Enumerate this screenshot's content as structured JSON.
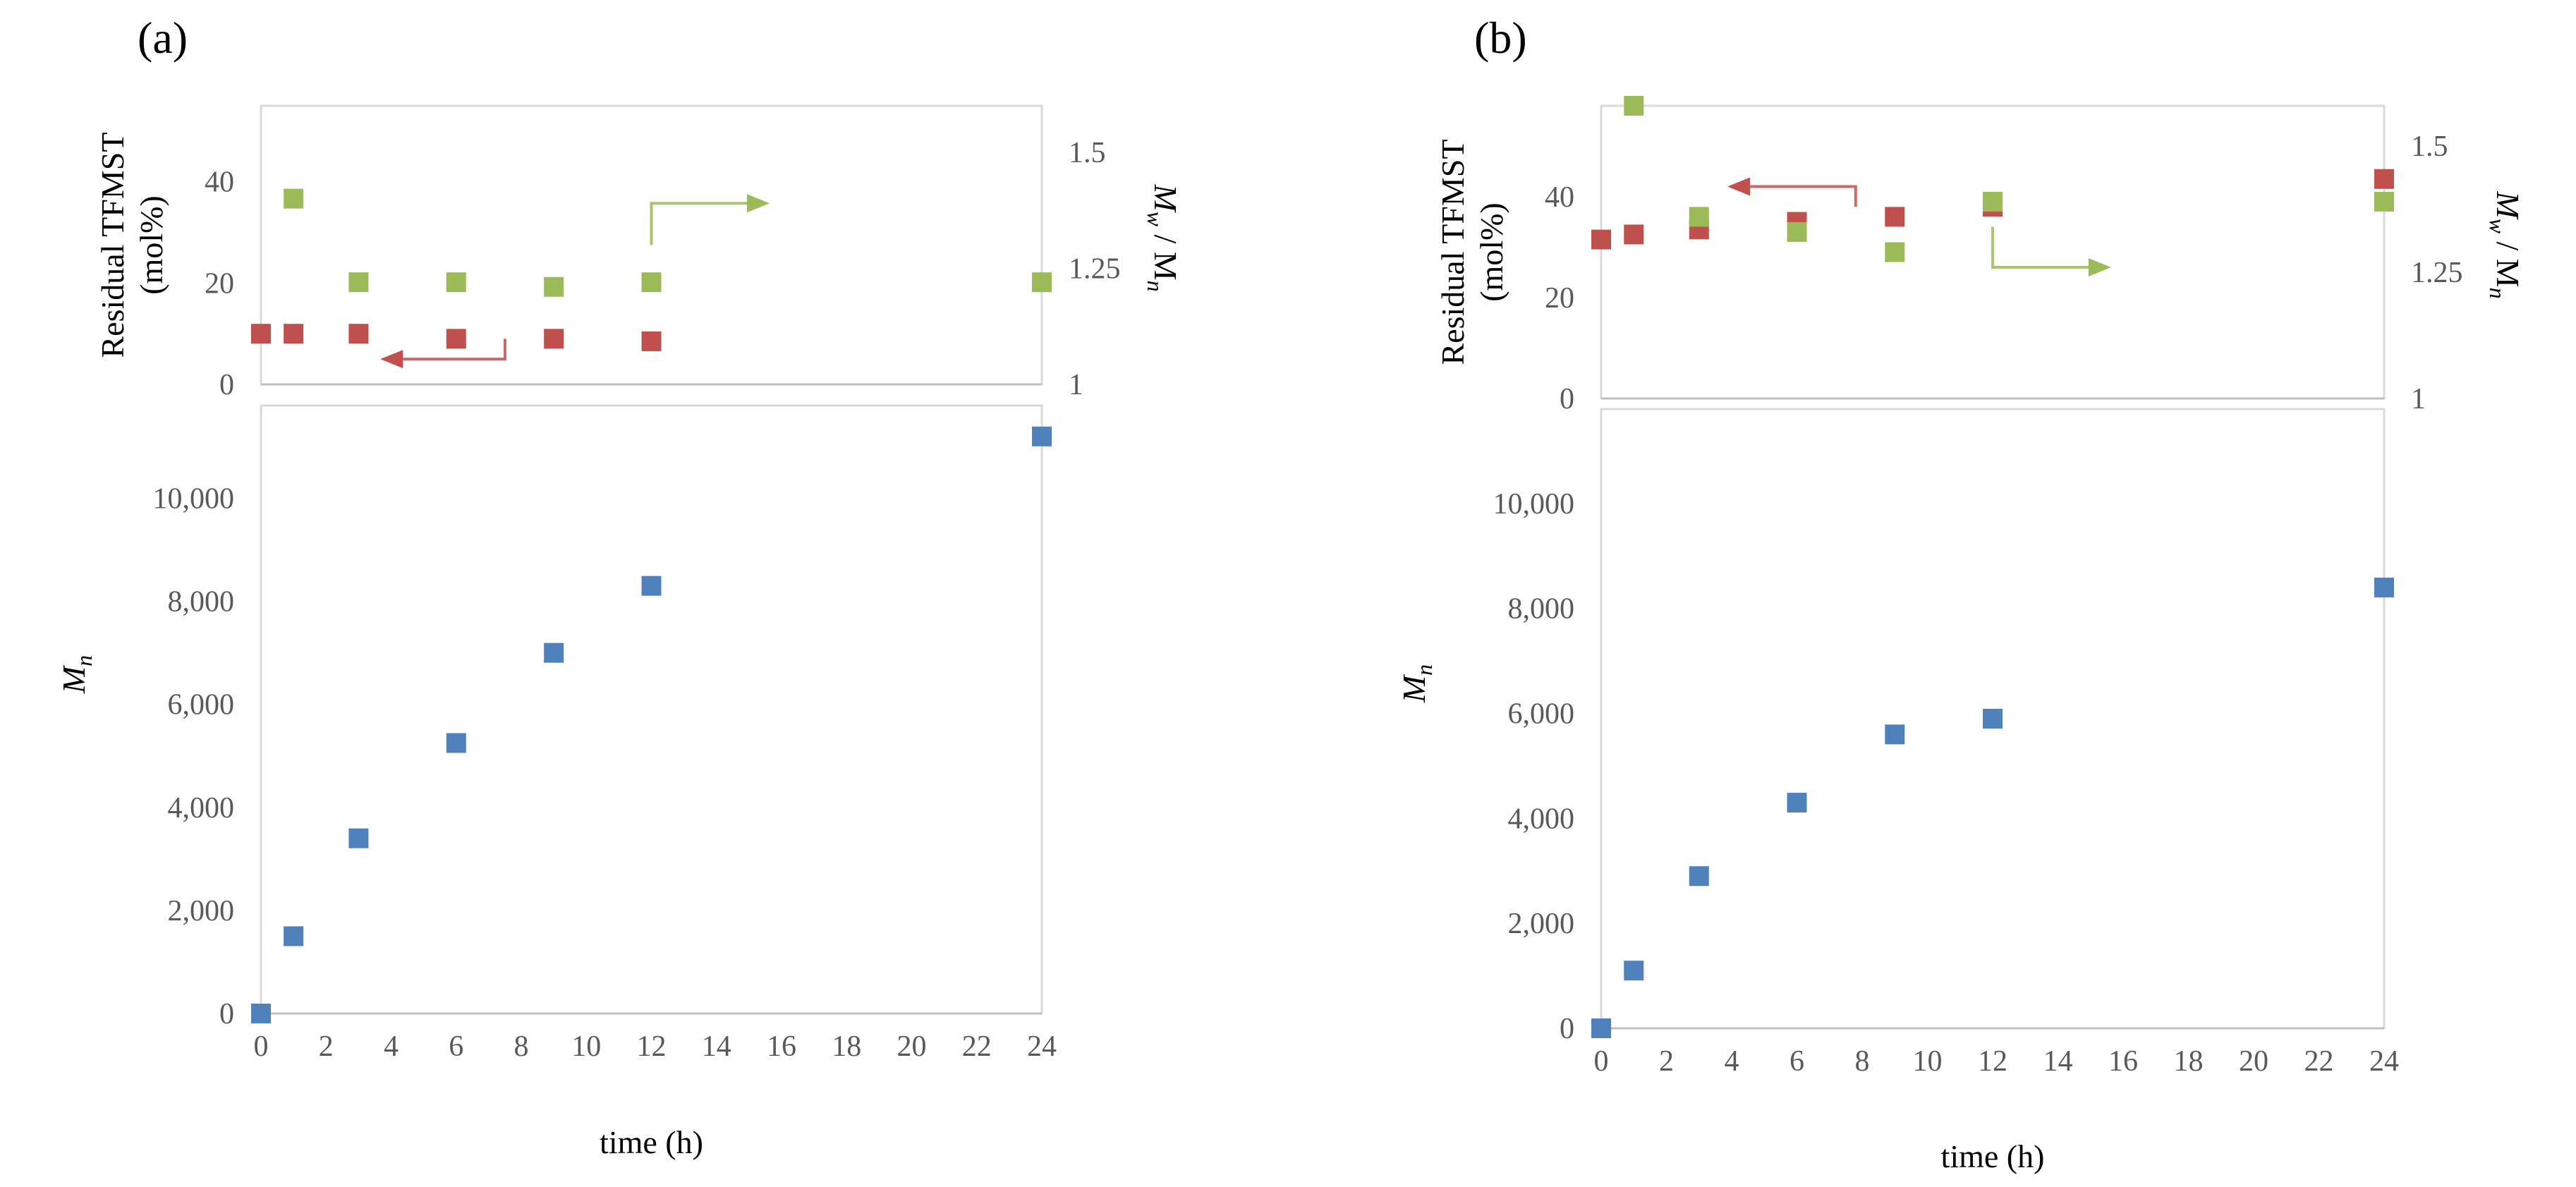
{
  "colors": {
    "red": "#C0504D",
    "green": "#9BBB59",
    "blue": "#4F81BD",
    "frame": "#D9D9D9",
    "tick": "#595959"
  },
  "chart_data": [
    {
      "type": "scatter",
      "panel_label": "(a)",
      "xlabel": "time  (h)",
      "xlim": [
        0,
        24
      ],
      "xticks": [
        "0",
        "2",
        "4",
        "6",
        "8",
        "10",
        "12",
        "14",
        "16",
        "18",
        "20",
        "22",
        "24"
      ],
      "top": {
        "ylabel_line1": "Residual  TFMST",
        "ylabel_line2": "(mol%)",
        "ylim": [
          0,
          55
        ],
        "yticks": [
          "0",
          "20",
          "40"
        ],
        "y2label_main": "M",
        "y2label_sub1": "w",
        "y2label_mid": " / M",
        "y2label_sub2": "n",
        "y2lim": [
          1,
          1.6
        ],
        "y2ticks": [
          "1",
          "1.25",
          "1.5"
        ],
        "series": [
          {
            "name": "Residual TFMST",
            "axis": "left",
            "color": "red",
            "x": [
              0,
              1,
              3,
              6,
              9,
              12
            ],
            "y": [
              10,
              10,
              10,
              9,
              9,
              8.5
            ]
          },
          {
            "name": "Mw/Mn",
            "axis": "right",
            "color": "green",
            "x": [
              1,
              3,
              6,
              9,
              12,
              24
            ],
            "y": [
              1.4,
              1.22,
              1.22,
              1.21,
              1.22,
              1.22
            ]
          }
        ],
        "arrows": [
          {
            "points": [
              [
                7.5,
                9
              ],
              [
                7.5,
                5
              ],
              [
                3.8,
                5
              ]
            ],
            "color": "red",
            "axis": "left"
          },
          {
            "points": [
              [
                12,
                1.3
              ],
              [
                12,
                1.39
              ],
              [
                15.5,
                1.39
              ]
            ],
            "color": "green",
            "axis": "right"
          }
        ]
      },
      "bottom": {
        "ylabel_main": "M",
        "ylabel_sub": "n",
        "ylim": [
          0,
          11800
        ],
        "yticks": [
          "0",
          "2,000",
          "4,000",
          "6,000",
          "8,000",
          "10,000"
        ],
        "series": [
          {
            "name": "Mn",
            "color": "blue",
            "x": [
              0,
              1,
              3,
              6,
              9,
              12,
              24
            ],
            "y": [
              0,
              1500,
              3400,
              5250,
              7000,
              8300,
              11200
            ]
          }
        ]
      }
    },
    {
      "type": "scatter",
      "panel_label": "(b)",
      "xlabel": "time  (h)",
      "xlim": [
        0,
        24
      ],
      "xticks": [
        "0",
        "2",
        "4",
        "6",
        "8",
        "10",
        "12",
        "14",
        "16",
        "18",
        "20",
        "22",
        "24"
      ],
      "top": {
        "ylabel_line1": "Residual  TFMST",
        "ylabel_line2": "(mol%)",
        "ylim": [
          0,
          58
        ],
        "yticks": [
          "0",
          "20",
          "40"
        ],
        "y2label_main": "M",
        "y2label_sub1": "w",
        "y2label_mid": " / M",
        "y2label_sub2": "n",
        "y2lim": [
          1,
          1.58
        ],
        "y2ticks": [
          "1",
          "1.25",
          "1.5"
        ],
        "series": [
          {
            "name": "Residual TFMST",
            "axis": "left",
            "color": "red",
            "x": [
              0,
              1,
              3,
              6,
              9,
              12,
              24
            ],
            "y": [
              31.5,
              32.5,
              33.5,
              35,
              36,
              38,
              43.5
            ]
          },
          {
            "name": "Mw/Mn",
            "axis": "right",
            "color": "green",
            "x": [
              1,
              3,
              6,
              9,
              12,
              24
            ],
            "y": [
              1.58,
              1.36,
              1.33,
              1.29,
              1.39,
              1.39
            ]
          }
        ],
        "arrows": [
          {
            "points": [
              [
                7.8,
                38
              ],
              [
                7.8,
                42
              ],
              [
                4,
                42
              ]
            ],
            "color": "red",
            "axis": "left"
          },
          {
            "points": [
              [
                12,
                1.34
              ],
              [
                12,
                1.26
              ],
              [
                15.5,
                1.26
              ]
            ],
            "color": "green",
            "axis": "right"
          }
        ]
      },
      "bottom": {
        "ylabel_main": "M",
        "ylabel_sub": "n",
        "ylim": [
          0,
          11800
        ],
        "yticks": [
          "0",
          "2,000",
          "4,000",
          "6,000",
          "8,000",
          "10,000"
        ],
        "series": [
          {
            "name": "Mn",
            "color": "blue",
            "x": [
              0,
              1,
              3,
              6,
              9,
              12,
              24
            ],
            "y": [
              0,
              1100,
              2900,
              4300,
              5600,
              5900,
              8400
            ]
          }
        ]
      }
    }
  ]
}
